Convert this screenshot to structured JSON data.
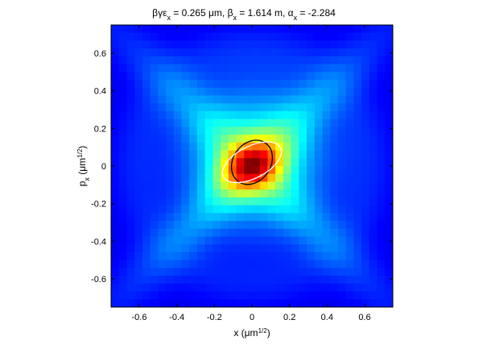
{
  "chart_data": {
    "type": "heatmap",
    "title": "βγε_x = 0.265 μm, β_x = 1.614 m, α_x = -2.284",
    "title_parts": {
      "emittance_label": "βγε",
      "emittance_sub": "x",
      "emittance_value": " = 0.265 μm, ",
      "beta_label": "β",
      "beta_sub": "x",
      "beta_value": " = 1.614 m, ",
      "alpha_label": "α",
      "alpha_sub": "x",
      "alpha_value": " = -2.284"
    },
    "xlabel": "x (μm^1/2)",
    "xlabel_parts": {
      "base": "x (μm",
      "sup": "1/2",
      "end": ")"
    },
    "ylabel": "p_x (μm^1/2)",
    "ylabel_parts": {
      "base": "p",
      "sub": "x",
      "mid": " (μm",
      "sup": "1/2",
      "end": ")"
    },
    "xlim": [
      -0.75,
      0.75
    ],
    "ylim": [
      -0.75,
      0.75
    ],
    "xticks": [
      -0.6,
      -0.4,
      -0.2,
      0,
      0.2,
      0.4,
      0.6
    ],
    "xtick_labels": [
      "-0.6",
      "-0.4",
      "-0.2",
      "0",
      "0.2",
      "0.4",
      "0.6"
    ],
    "yticks": [
      0.6,
      0.4,
      0.2,
      0,
      -0.2,
      -0.4,
      -0.6
    ],
    "ytick_labels": [
      "0.6",
      "0.4",
      "0.2",
      "0",
      "-0.2",
      "-0.4",
      "-0.6"
    ],
    "colormap": "jet",
    "grid_cells": 36,
    "density_model": {
      "core": {
        "center": [
          0.0,
          0.0
        ],
        "sigma_u": 0.12,
        "sigma_v": 0.085,
        "angle_deg": 28,
        "amplitude": 1.0
      },
      "halo": {
        "center": [
          0.02,
          0.05
        ],
        "radius": 0.26,
        "amplitude": 0.6
      },
      "cross_arms": {
        "angle_deg": 45,
        "width": 0.09,
        "length": 0.65,
        "amplitude": 0.3
      },
      "background_level": 0.08
    },
    "ellipses": [
      {
        "name": "black",
        "color": "#000000",
        "center": [
          0.0,
          0.02
        ],
        "semi_major": 0.125,
        "semi_minor": 0.1,
        "angle_deg": 55
      },
      {
        "name": "white",
        "color": "#ffffff",
        "center": [
          0.0,
          0.02
        ],
        "semi_major": 0.17,
        "semi_minor": 0.085,
        "angle_deg": 27
      }
    ],
    "grid": false,
    "legend": "none"
  }
}
